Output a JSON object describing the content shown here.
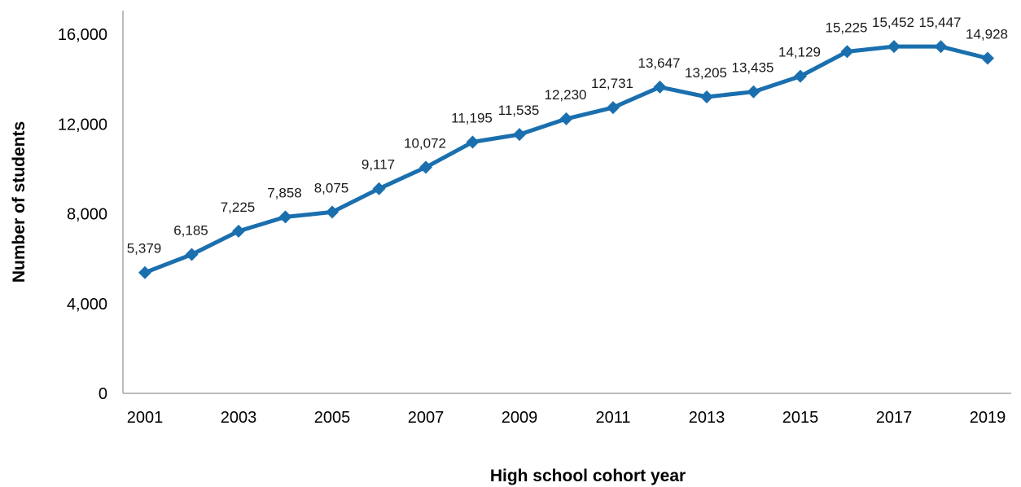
{
  "chart_data": {
    "type": "line",
    "title": "",
    "xlabel": "High school cohort year",
    "ylabel": "Number of students",
    "x": [
      2001,
      2002,
      2003,
      2004,
      2005,
      2006,
      2007,
      2008,
      2009,
      2010,
      2011,
      2012,
      2013,
      2014,
      2015,
      2016,
      2017,
      2018,
      2019
    ],
    "x_tick_labels": [
      "2001",
      "2003",
      "2005",
      "2007",
      "2009",
      "2011",
      "2013",
      "2015",
      "2017",
      "2019"
    ],
    "y_tick_values": [
      0,
      4000,
      8000,
      12000,
      16000
    ],
    "y_tick_labels": [
      "0",
      "4,000",
      "8,000",
      "12,000",
      "16,000"
    ],
    "ylim": [
      0,
      16000
    ],
    "grid": false,
    "legend": "none",
    "series": [
      {
        "color": "#1a6fae",
        "marker": "diamond",
        "values": [
          5379,
          6185,
          7225,
          7858,
          8075,
          9117,
          10072,
          11195,
          11535,
          12230,
          12731,
          13647,
          13205,
          13435,
          14129,
          15225,
          15452,
          15447,
          14928
        ],
        "labels": [
          "5,379",
          "6,185",
          "7,225",
          "7,858",
          "8,075",
          "9,117",
          "10,072",
          "11,195",
          "11,535",
          "12,230",
          "12,731",
          "13,647",
          "13,205",
          "13,435",
          "14,129",
          "15,225",
          "15,452",
          "15,447",
          "14,928"
        ]
      }
    ]
  }
}
